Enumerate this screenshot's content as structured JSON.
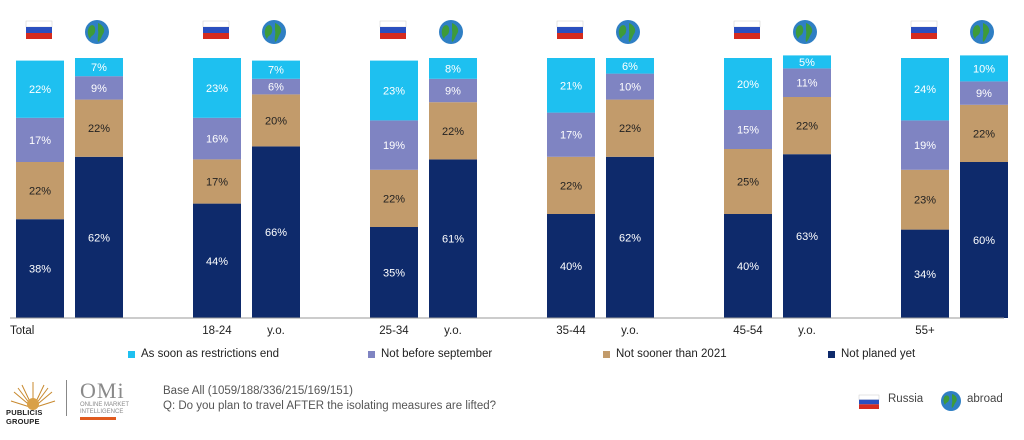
{
  "chart_data": {
    "type": "bar",
    "stacked": true,
    "groups": [
      {
        "label_russia": "Total",
        "label_abroad": "",
        "russia": [
          38,
          22,
          17,
          22
        ],
        "abroad": [
          62,
          22,
          9,
          7
        ]
      },
      {
        "label_russia": "18-24",
        "label_abroad": "y.o.",
        "russia": [
          44,
          17,
          16,
          23
        ],
        "abroad": [
          66,
          20,
          6,
          7
        ]
      },
      {
        "label_russia": "25-34",
        "label_abroad": "y.o.",
        "russia": [
          35,
          22,
          19,
          23
        ],
        "abroad": [
          61,
          22,
          9,
          8
        ]
      },
      {
        "label_russia": "35-44",
        "label_abroad": "y.o.",
        "russia": [
          40,
          22,
          17,
          21
        ],
        "abroad": [
          62,
          22,
          10,
          6
        ]
      },
      {
        "label_russia": "45-54",
        "label_abroad": "y.o.",
        "russia": [
          40,
          25,
          15,
          20
        ],
        "abroad": [
          63,
          22,
          11,
          5
        ]
      },
      {
        "label_russia": "55+",
        "label_abroad": "",
        "russia": [
          34,
          23,
          19,
          24
        ],
        "abroad": [
          60,
          22,
          9,
          10
        ]
      }
    ],
    "series": [
      {
        "name": "Not planed yet",
        "color": "#0e2a6b",
        "label_color": "#ffffff"
      },
      {
        "name": "Not sooner than 2021",
        "color": "#c29b6b",
        "label_color": "#222222"
      },
      {
        "name": "Not before september",
        "color": "#7f84c2",
        "label_color": "#ffffff"
      },
      {
        "name": "As soon as restrictions end",
        "color": "#1ec0f0",
        "label_color": "#ffffff"
      }
    ],
    "legend_order": [
      3,
      2,
      1,
      0
    ],
    "ylim": [
      0,
      100
    ],
    "value_suffix": "%",
    "legend_position": "bottom"
  },
  "icons": {
    "russia": "russia-flag-icon",
    "abroad": "globe-icon"
  },
  "footer": {
    "brand1_line1": "PUBLICIS",
    "brand1_line2": "GROUPE",
    "brand2_name": "OMi",
    "brand2_sub": "ONLINE MARKET INTELLIGENCE",
    "base": "Base All (1059/188/336/215/169/151)",
    "question": "Q: Do you plan to travel AFTER the isolating measures are lifted?",
    "russia_label": "Russia",
    "abroad_label": "abroad"
  }
}
